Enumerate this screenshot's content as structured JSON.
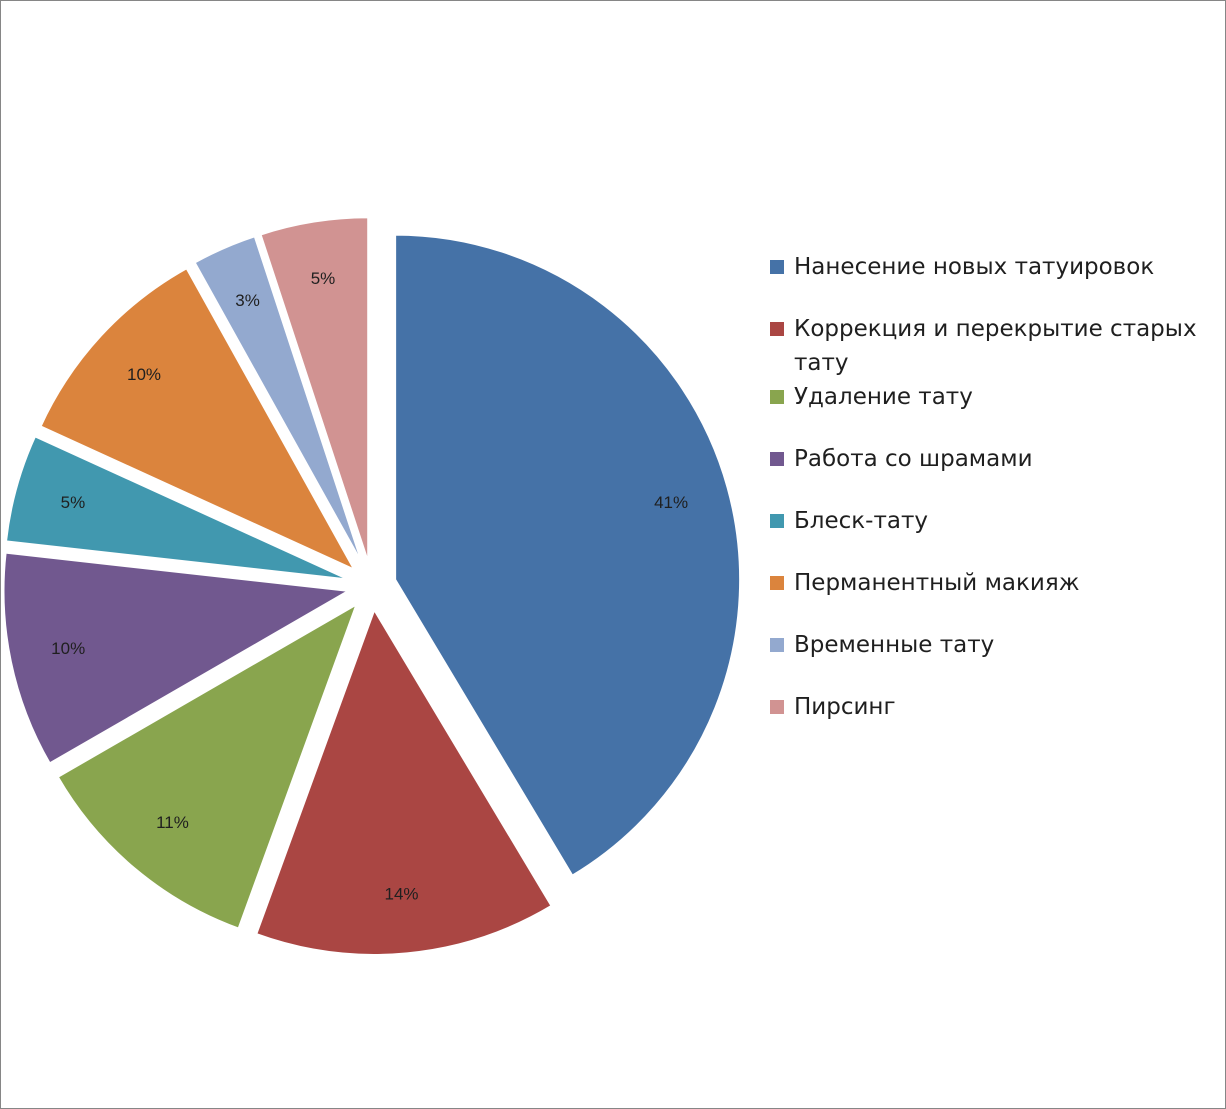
{
  "chart_data": {
    "type": "pie",
    "title": "",
    "exploded": true,
    "legend_position": "right",
    "labels_format": "percent",
    "slices": [
      {
        "name": "Нанесение новых татуировок",
        "value": 41,
        "label": "41%",
        "color": "#4572A7"
      },
      {
        "name": "Коррекция и перекрытие старых тату",
        "value": 14,
        "label": "14%",
        "color": "#AA4643"
      },
      {
        "name": "Удаление тату",
        "value": 11,
        "label": "11%",
        "color": "#89A54E"
      },
      {
        "name": "Работа со шрамами",
        "value": 10,
        "label": "10%",
        "color": "#71588F"
      },
      {
        "name": "Блеск-тату",
        "value": 5,
        "label": "5%",
        "color": "#4198AF"
      },
      {
        "name": "Перманентный макияж",
        "value": 10,
        "label": "10%",
        "color": "#DB843D"
      },
      {
        "name": "Временные тату",
        "value": 3,
        "label": "3%",
        "color": "#93A9CF"
      },
      {
        "name": "Пирсинг",
        "value": 5,
        "label": "5%",
        "color": "#D19392"
      }
    ]
  }
}
